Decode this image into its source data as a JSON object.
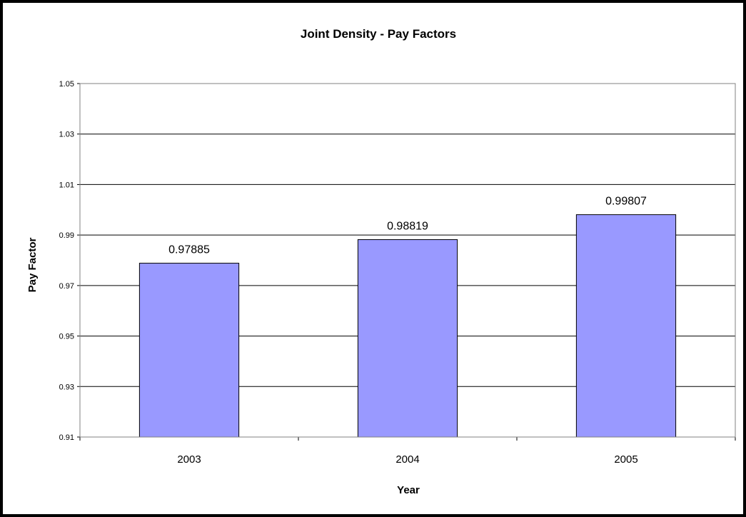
{
  "chart_data": {
    "type": "bar",
    "title": "Joint Density - Pay Factors",
    "xlabel": "Year",
    "ylabel": "Pay Factor",
    "categories": [
      "2003",
      "2004",
      "2005"
    ],
    "values": [
      0.97885,
      0.98819,
      0.99807
    ],
    "data_labels": [
      "0.97885",
      "0.98819",
      "0.99807"
    ],
    "ylim": [
      0.91,
      1.05
    ],
    "yticks": [
      0.91,
      0.93,
      0.95,
      0.97,
      0.99,
      1.01,
      1.03,
      1.05
    ],
    "ytick_labels": [
      "0.91",
      "0.93",
      "0.95",
      "0.97",
      "0.99",
      "1.01",
      "1.03",
      "1.05"
    ],
    "grid": "horizontal",
    "legend": "none",
    "bar_color": "#9999ff"
  }
}
